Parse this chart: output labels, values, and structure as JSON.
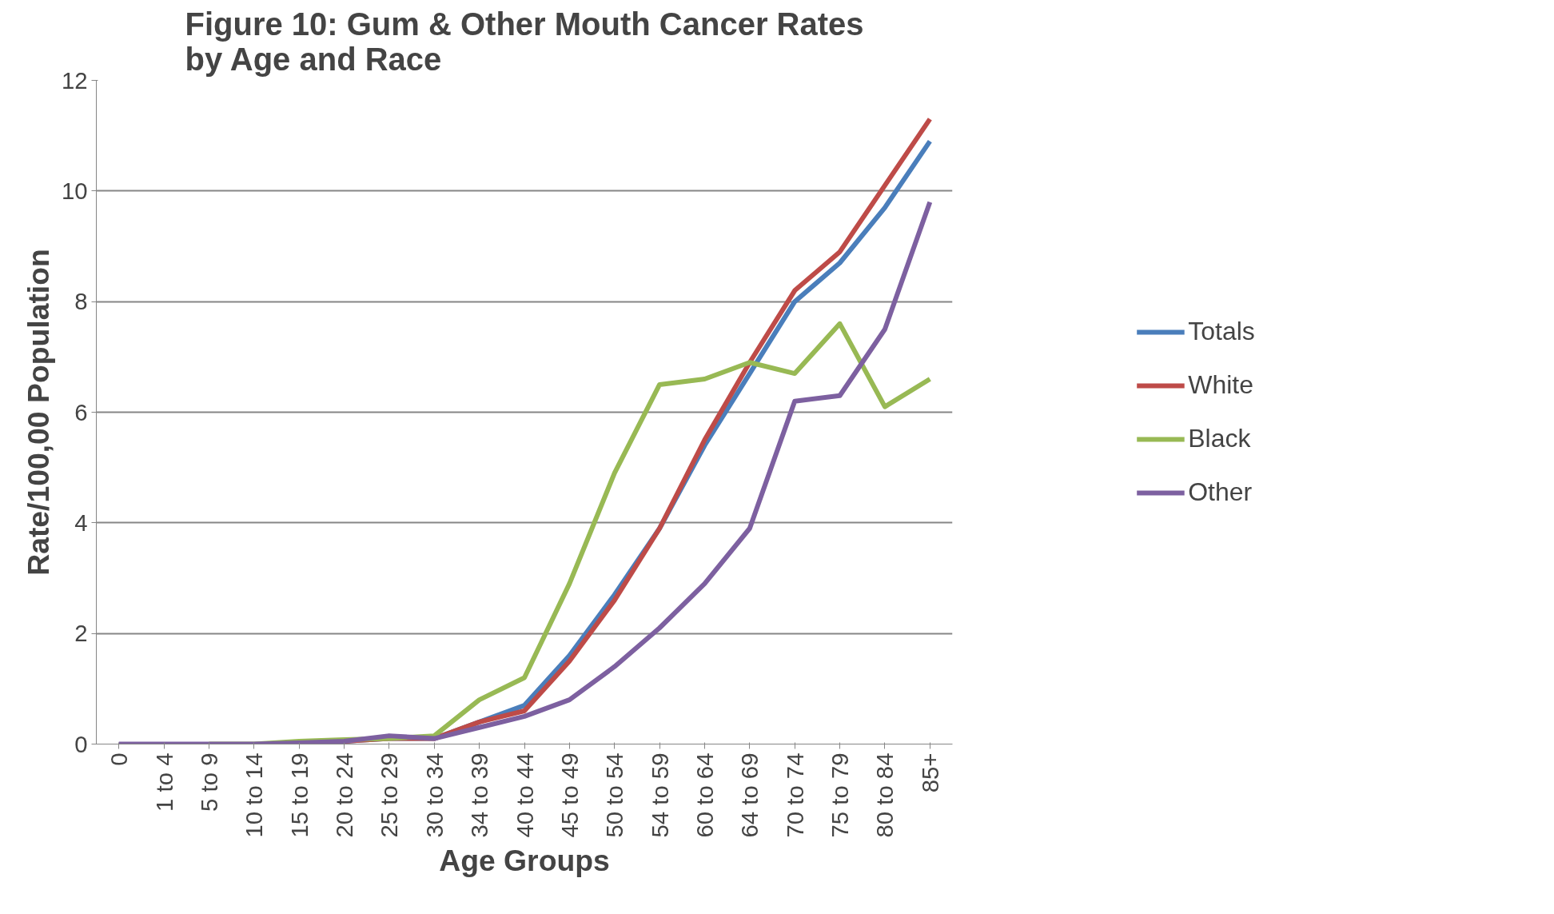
{
  "chart_data": {
    "type": "line",
    "title": "Figure 10: Gum & Other Mouth Cancer Rates\nby Age and Race",
    "xlabel": "Age Groups",
    "ylabel": "Rate/100,00 Population",
    "categories": [
      "0",
      "1 to 4",
      "5 to 9",
      "10 to 14",
      "15 to 19",
      "20 to 24",
      "25 to 29",
      "30 to 34",
      "34 to 39",
      "40 to 44",
      "45 to 49",
      "50 to 54",
      "54 to 59",
      "60 to 64",
      "64 to 69",
      "70 to 74",
      "75 to 79",
      "80 to 84",
      "85+"
    ],
    "series": [
      {
        "name": "Totals",
        "color": "#4a7ebb",
        "values": [
          null,
          null,
          null,
          null,
          0.02,
          0.05,
          0.1,
          0.1,
          0.4,
          0.7,
          1.6,
          2.7,
          3.9,
          5.4,
          6.7,
          8.0,
          8.7,
          9.7,
          10.9
        ]
      },
      {
        "name": "White",
        "color": "#be4b48",
        "values": [
          null,
          null,
          null,
          null,
          0.02,
          0.05,
          0.1,
          0.1,
          0.4,
          0.6,
          1.5,
          2.6,
          3.9,
          5.5,
          6.9,
          8.2,
          8.9,
          10.1,
          11.3
        ]
      },
      {
        "name": "Black",
        "color": "#98b954",
        "values": [
          null,
          null,
          0,
          0,
          0.05,
          0.08,
          0.1,
          0.15,
          0.8,
          1.2,
          2.9,
          4.9,
          6.5,
          6.6,
          6.9,
          6.7,
          7.6,
          6.1,
          6.6
        ]
      },
      {
        "name": "Other",
        "color": "#7d60a0",
        "values": [
          0,
          0,
          0,
          0,
          0.02,
          0.05,
          0.15,
          0.1,
          0.3,
          0.5,
          0.8,
          1.4,
          2.1,
          2.9,
          3.9,
          6.2,
          6.3,
          7.5,
          9.8
        ]
      }
    ],
    "ylim": [
      0,
      12
    ],
    "yticks": [
      0,
      2,
      4,
      6,
      8,
      10,
      12
    ],
    "grid": "y",
    "legend": "right",
    "marker": "none",
    "line_style": "solid"
  }
}
